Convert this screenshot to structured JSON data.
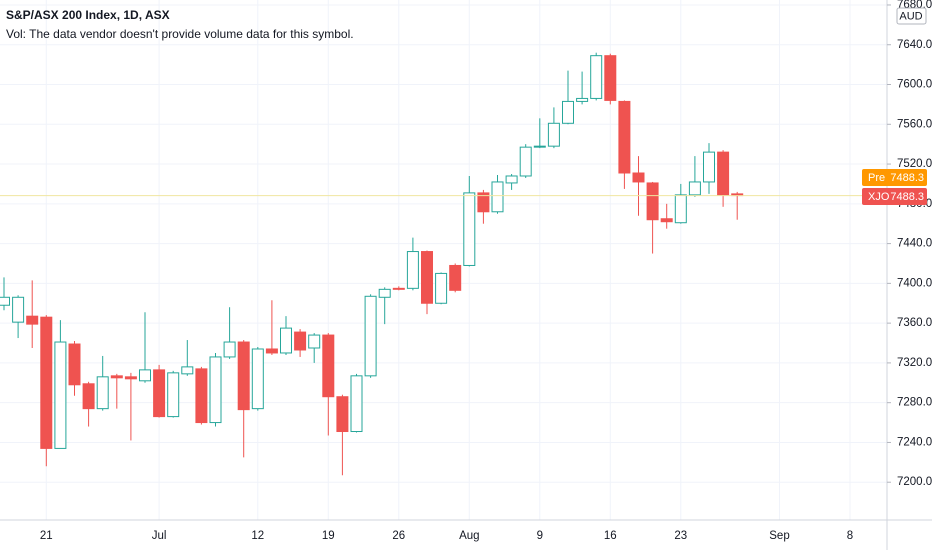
{
  "chart_data": {
    "type": "candlestick",
    "title": "S&P/ASX 200 Index, 1D, ASX",
    "subtitle": "Vol: The data vendor doesn't provide volume data for this symbol.",
    "currency": "AUD",
    "up_color": "#26a69a",
    "down_color": "#ef5350",
    "grid": true,
    "categories": [
      null,
      null,
      null,
      "21",
      null,
      null,
      null,
      null,
      null,
      null,
      null,
      "Jul",
      null,
      null,
      null,
      null,
      null,
      null,
      "12",
      null,
      null,
      null,
      null,
      "19",
      null,
      null,
      null,
      null,
      "26",
      null,
      null,
      null,
      null,
      "Aug",
      null,
      null,
      null,
      null,
      "9",
      null,
      null,
      null,
      null,
      "16",
      null,
      null,
      null,
      null,
      "23",
      null,
      null,
      null,
      null,
      null,
      null,
      "Sep",
      null,
      null,
      null,
      null,
      "8",
      null,
      null
    ],
    "open": [
      7378,
      7361,
      7367,
      7366,
      7234,
      7339,
      7299,
      7274,
      7307,
      7306,
      7302,
      7313,
      7266,
      7309,
      7314,
      7260,
      7326,
      7341,
      7274,
      7334,
      7330,
      7351,
      7335,
      7348,
      7286,
      7251,
      7307,
      7386,
      7395,
      7395,
      7432,
      7380,
      7418,
      7418,
      7491,
      7472,
      7501,
      7508,
      7537,
      7538,
      7561,
      7583,
      7586,
      7629,
      7583,
      7511,
      7501,
      7465,
      7461,
      7489,
      7502,
      7532,
      7490,
      null,
      null,
      null,
      null,
      null,
      null,
      null,
      null,
      null,
      null
    ],
    "high": [
      7406,
      7388,
      7403,
      7368,
      7363,
      7342,
      7301,
      7327,
      7309,
      7310,
      7371,
      7318,
      7312,
      7343,
      7316,
      7330,
      7376,
      7343,
      7336,
      7383,
      7367,
      7354,
      7350,
      7350,
      7288,
      7309,
      7389,
      7396,
      7397,
      7446,
      7433,
      7411,
      7420,
      7508,
      7494,
      7509,
      7510,
      7540,
      7566,
      7577,
      7614,
      7613,
      7632,
      7631,
      7584,
      7528,
      7502,
      7480,
      7500,
      7528,
      7541,
      7534,
      7492,
      null,
      null,
      null,
      null,
      null,
      null,
      null,
      null,
      null,
      null
    ],
    "low": [
      7373,
      7345,
      7335,
      7216,
      7234,
      7287,
      7256,
      7272,
      7274,
      7242,
      7300,
      7265,
      7265,
      7307,
      7258,
      7256,
      7324,
      7225,
      7272,
      7328,
      7328,
      7326,
      7320,
      7247,
      7207,
      7250,
      7305,
      7359,
      7393,
      7393,
      7369,
      7379,
      7391,
      7417,
      7460,
      7470,
      7494,
      7506,
      7536,
      7536,
      7560,
      7580,
      7584,
      7580,
      7495,
      7468,
      7430,
      7455,
      7460,
      7487,
      7490,
      7477,
      7464,
      null,
      null,
      null,
      null,
      null,
      null,
      null,
      null,
      null,
      null
    ],
    "close": [
      7386,
      7386,
      7359,
      7234,
      7341,
      7298,
      7274,
      7306,
      7305,
      7304,
      7313,
      7266,
      7310,
      7316,
      7260,
      7326,
      7341,
      7273,
      7334,
      7330,
      7355,
      7333,
      7348,
      7286,
      7251,
      7307,
      7387,
      7394,
      7394,
      7432,
      7380,
      7410,
      7393,
      7491,
      7472,
      7502,
      7508,
      7537,
      7538,
      7561,
      7583,
      7586,
      7629,
      7584,
      7511,
      7502,
      7464,
      7462,
      7489,
      7502,
      7532,
      7489,
      7488.3,
      null,
      null,
      null,
      null,
      null,
      null,
      null,
      null,
      null,
      null
    ],
    "ylim": [
      7162,
      7685
    ],
    "yticks": [
      {
        "value": 7200,
        "label": "7200.0"
      },
      {
        "value": 7240,
        "label": "7240.0"
      },
      {
        "value": 7280,
        "label": "7280.0"
      },
      {
        "value": 7320,
        "label": "7320.0"
      },
      {
        "value": 7360,
        "label": "7360.0"
      },
      {
        "value": 7400,
        "label": "7400.0"
      },
      {
        "value": 7440,
        "label": "7440.0"
      },
      {
        "value": 7480,
        "label": "7480.0"
      },
      {
        "value": 7520,
        "label": "7520.0"
      },
      {
        "value": 7560,
        "label": "7560.0"
      },
      {
        "value": 7600,
        "label": "7600.0"
      },
      {
        "value": 7640,
        "label": "7640.0"
      },
      {
        "value": 7680,
        "label": "7680.0"
      }
    ],
    "price_labels": [
      {
        "name": "Pre",
        "value": 7488.3,
        "color": "#ff9800"
      },
      {
        "name": "XJO",
        "value": 7488.3,
        "color": "#ef5350"
      }
    ],
    "price_line_color": "#f0e6a0"
  }
}
